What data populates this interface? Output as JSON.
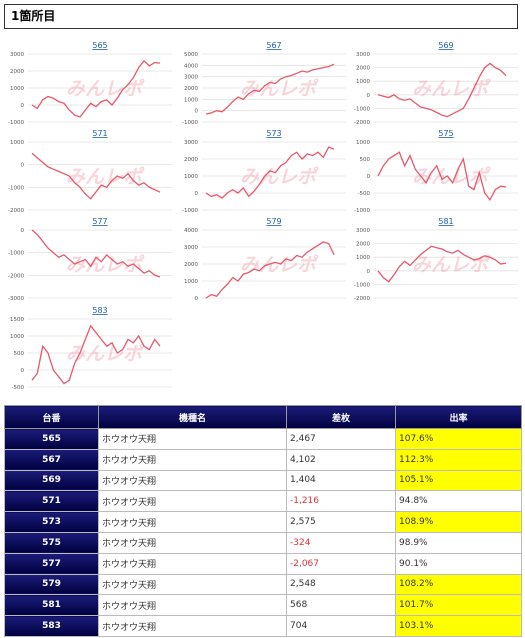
{
  "header": {
    "title": "1箇所目"
  },
  "watermark": "みんレポ",
  "chart_data": [
    {
      "type": "line",
      "title": "565",
      "color": "#e8586a",
      "grid": true,
      "ylim": [
        -1000,
        3000
      ],
      "yticks": [
        -1000,
        0,
        1000,
        2000,
        3000
      ],
      "values": [
        0,
        -200,
        300,
        500,
        400,
        200,
        100,
        -300,
        -600,
        -700,
        -300,
        100,
        -100,
        200,
        300,
        0,
        400,
        900,
        1200,
        1600,
        2200,
        2600,
        2300,
        2500,
        2467
      ]
    },
    {
      "type": "line",
      "title": "567",
      "color": "#e8586a",
      "grid": true,
      "ylim": [
        -1000,
        5000
      ],
      "yticks": [
        -1000,
        0,
        1000,
        2000,
        3000,
        4000,
        5000
      ],
      "values": [
        -300,
        -200,
        0,
        -100,
        300,
        800,
        1200,
        1000,
        1500,
        1800,
        1700,
        2200,
        2500,
        2400,
        2800,
        3000,
        3100,
        3300,
        3500,
        3400,
        3600,
        3700,
        3800,
        3900,
        4102
      ]
    },
    {
      "type": "line",
      "title": "569",
      "color": "#e8586a",
      "grid": true,
      "ylim": [
        -2000,
        3000
      ],
      "yticks": [
        -2000,
        -1000,
        0,
        1000,
        2000,
        3000
      ],
      "values": [
        0,
        -100,
        -200,
        0,
        -300,
        -400,
        -300,
        -600,
        -900,
        -1000,
        -1100,
        -1300,
        -1500,
        -1600,
        -1400,
        -1200,
        -1000,
        -300,
        500,
        1300,
        2000,
        2300,
        2000,
        1800,
        1404
      ]
    },
    {
      "type": "line",
      "title": "571",
      "color": "#e8586a",
      "grid": true,
      "ylim": [
        -2000,
        1000
      ],
      "yticks": [
        -2000,
        -1000,
        0,
        1000
      ],
      "values": [
        500,
        300,
        100,
        -100,
        -200,
        -300,
        -400,
        -500,
        -800,
        -1000,
        -1300,
        -1500,
        -1200,
        -900,
        -1000,
        -700,
        -500,
        -600,
        -400,
        -700,
        -900,
        -800,
        -1000,
        -1100,
        -1216
      ]
    },
    {
      "type": "line",
      "title": "573",
      "color": "#e8586a",
      "grid": true,
      "ylim": [
        -1000,
        3000
      ],
      "yticks": [
        -1000,
        0,
        1000,
        2000,
        3000
      ],
      "values": [
        0,
        -200,
        -100,
        -300,
        0,
        200,
        0,
        300,
        -200,
        100,
        500,
        1000,
        1300,
        1200,
        1600,
        1800,
        2200,
        2400,
        2000,
        2300,
        2200,
        2400,
        2100,
        2700,
        2575
      ]
    },
    {
      "type": "line",
      "title": "575",
      "color": "#e8586a",
      "grid": true,
      "ylim": [
        -1000,
        1000
      ],
      "yticks": [
        -1000,
        -500,
        0,
        500,
        1000
      ],
      "values": [
        0,
        300,
        500,
        600,
        700,
        300,
        600,
        200,
        0,
        -200,
        100,
        300,
        -100,
        0,
        -200,
        200,
        500,
        -300,
        -400,
        100,
        -500,
        -700,
        -400,
        -300,
        -324
      ]
    },
    {
      "type": "line",
      "title": "577",
      "color": "#e8586a",
      "grid": true,
      "ylim": [
        -3000,
        0
      ],
      "yticks": [
        -3000,
        -2000,
        -1000,
        0
      ],
      "values": [
        0,
        -200,
        -500,
        -800,
        -1000,
        -1200,
        -1100,
        -1300,
        -1500,
        -1400,
        -1300,
        -1600,
        -1200,
        -1400,
        -1100,
        -1300,
        -1500,
        -1400,
        -1600,
        -1500,
        -1700,
        -1900,
        -1800,
        -2000,
        -2067
      ]
    },
    {
      "type": "line",
      "title": "579",
      "color": "#e8586a",
      "grid": true,
      "ylim": [
        0,
        4000
      ],
      "yticks": [
        0,
        1000,
        2000,
        3000,
        4000
      ],
      "values": [
        0,
        200,
        100,
        500,
        800,
        1200,
        1000,
        1400,
        1500,
        1700,
        1600,
        1900,
        2000,
        2100,
        2000,
        2300,
        2200,
        2500,
        2400,
        2700,
        2900,
        3100,
        3300,
        3200,
        2548
      ]
    },
    {
      "type": "line",
      "title": "581",
      "color": "#e8586a",
      "grid": true,
      "ylim": [
        -2000,
        3000
      ],
      "yticks": [
        -2000,
        -1000,
        0,
        1000,
        2000,
        3000
      ],
      "values": [
        0,
        -500,
        -800,
        -300,
        300,
        700,
        400,
        800,
        1200,
        1500,
        1800,
        1700,
        1600,
        1400,
        1300,
        1500,
        1200,
        1000,
        800,
        900,
        1100,
        1000,
        800,
        500,
        568
      ]
    },
    {
      "type": "line",
      "title": "583",
      "color": "#e8586a",
      "grid": true,
      "ylim": [
        -500,
        1500
      ],
      "yticks": [
        -500,
        0,
        500,
        1000,
        1500
      ],
      "values": [
        -300,
        -100,
        700,
        500,
        0,
        -200,
        -400,
        -300,
        200,
        500,
        900,
        1300,
        1100,
        900,
        700,
        800,
        500,
        600,
        900,
        800,
        1000,
        700,
        600,
        900,
        704
      ]
    }
  ],
  "table": {
    "columns": [
      "台番",
      "機種名",
      "差枚",
      "出率"
    ],
    "rows": [
      [
        "565",
        "ホウオウ天翔",
        "2,467",
        "107.6%"
      ],
      [
        "567",
        "ホウオウ天翔",
        "4,102",
        "112.3%"
      ],
      [
        "569",
        "ホウオウ天翔",
        "1,404",
        "105.1%"
      ],
      [
        "571",
        "ホウオウ天翔",
        "-1,216",
        "94.8%"
      ],
      [
        "573",
        "ホウオウ天翔",
        "2,575",
        "108.9%"
      ],
      [
        "575",
        "ホウオウ天翔",
        "-324",
        "98.9%"
      ],
      [
        "577",
        "ホウオウ天翔",
        "-2,067",
        "90.1%"
      ],
      [
        "579",
        "ホウオウ天翔",
        "2,548",
        "108.2%"
      ],
      [
        "581",
        "ホウオウ天翔",
        "568",
        "101.7%"
      ],
      [
        "583",
        "ホウオウ天翔",
        "704",
        "103.1%"
      ]
    ]
  }
}
